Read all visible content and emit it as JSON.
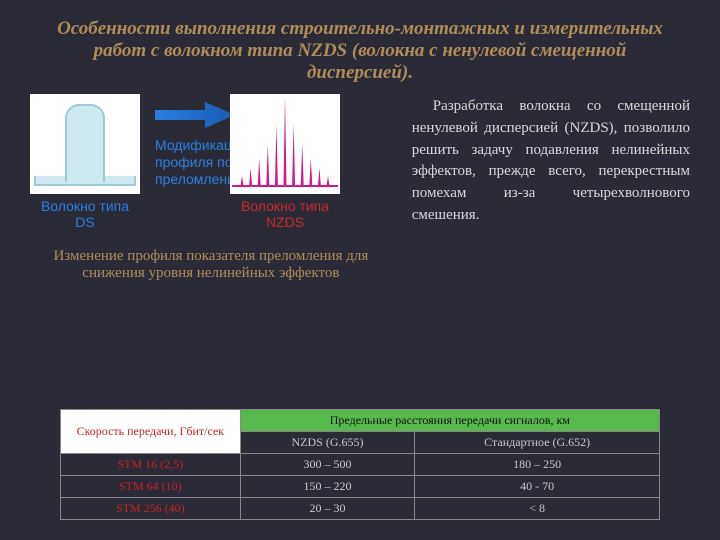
{
  "title": "Особенности выполнения строительно-монтажных и измерительных работ с волокном типа NZDS (волокна с ненулевой смещенной дисперсией).",
  "left": {
    "ds_label": "Волокно типа DS",
    "nzds_label": "Волокно типа NZDS",
    "arrow_text": "Модификация профиля показателя преломления",
    "caption": "Изменение профиля показателя преломления для снижения уровня нелинейных эффектов",
    "ds_chart": {
      "type": "single-pulse",
      "bg": "#ffffff",
      "fill": "#cfe9f0",
      "stroke": "#9fcad6"
    },
    "nzds_chart": {
      "type": "multi-spike",
      "bg": "#ffffff",
      "color": "#d11a8a",
      "spike_heights": [
        10,
        18,
        28,
        42,
        62,
        90,
        62,
        42,
        28,
        18,
        10
      ],
      "spike_pattern": "alternating"
    },
    "arrow_color": "#2a7de1"
  },
  "right": {
    "text": "Разработка волокна со смещенной ненулевой дисперсией (NZDS), позволило решить задачу подавления нелинейных эффектов, прежде всего, перекрестным помехам из-за четырехволнового смешения."
  },
  "table": {
    "type": "table",
    "header_speed": "Скорость передачи, Гбит/сек",
    "header_dist": "Предельные расстояния передачи сигналов, км",
    "sub_headers": [
      "NZDS (G.655)",
      "Стандартное (G.652)"
    ],
    "rows": [
      {
        "label": "STM 16 (2,5)",
        "vals": [
          "300 – 500",
          "180 – 250"
        ]
      },
      {
        "label": "STM 64 (10)",
        "vals": [
          "150 – 220",
          "40 - 70"
        ]
      },
      {
        "label": "STM 256 (40)",
        "vals": [
          "20 – 30",
          "< 8"
        ]
      }
    ],
    "colors": {
      "header_speed_bg": "#ffffff",
      "header_speed_text": "#c72222",
      "header_dist_bg": "#56b94b",
      "header_dist_text": "#111111",
      "row_label_text": "#c72222",
      "row_val_text": "#c9c9c9",
      "border": "#888888"
    }
  }
}
